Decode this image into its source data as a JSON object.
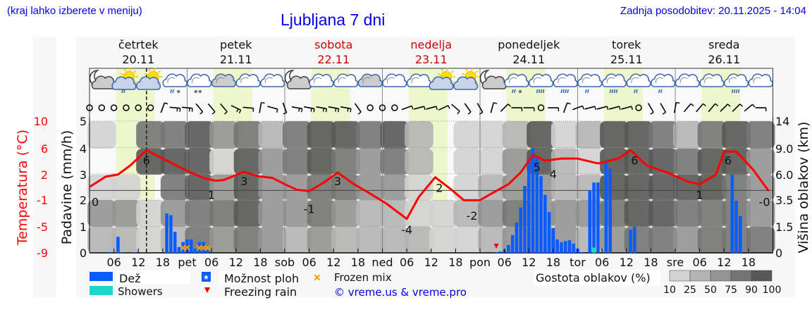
{
  "header": {
    "hint": "(kraj lahko izberete v meniju)",
    "title": "Ljubljana 7 dni",
    "updated": "Zadnja posodobitev: 20.11.2025 - 14:04"
  },
  "colors": {
    "rain": "#0a5cff",
    "showers": "#1ad6c8",
    "temperature": "#ff0000",
    "daylight": "#eef6cc",
    "weekend": "#cc0000",
    "frozen_mix": "#f5a000",
    "freezing_rain": "#ee0000",
    "cloud_density": {
      "10": "#d2d2d2",
      "25": "#b4b4b4",
      "50": "#949494",
      "75": "#747474",
      "90": "#585858"
    }
  },
  "days": [
    {
      "name": "četrtek",
      "date": "20.11",
      "weekend": false
    },
    {
      "name": "petek",
      "date": "21.11",
      "weekend": false
    },
    {
      "name": "sobota",
      "date": "22.11",
      "weekend": true
    },
    {
      "name": "nedelja",
      "date": "23.11",
      "weekend": true
    },
    {
      "name": "ponedeljek",
      "date": "24.11",
      "weekend": false
    },
    {
      "name": "torek",
      "date": "25.11",
      "weekend": false
    },
    {
      "name": "sreda",
      "date": "26.11",
      "weekend": false
    }
  ],
  "now_marker": "20.11 14:00",
  "weather_icons": [
    "moon-cloud",
    "sun-cloud-rain",
    "sun-cloud",
    "cloud-sleet",
    "cloud-snow",
    "cloud",
    "cloud",
    "cloud",
    "moon-cloud",
    "cloud",
    "cloud",
    "cloud",
    "cloud",
    "cloud",
    "sun-cloud",
    "sun-cloud",
    "moon-cloud",
    "cloud-sleet",
    "cloud-rain-heavy",
    "cloud-rain-heavy",
    "cloud-rain-light",
    "cloud-rain-heavy",
    "cloud-rain-light",
    "cloud-rain-light",
    "cloud",
    "cloud",
    "cloud-rain-heavy",
    "cloud"
  ],
  "wind": [
    {
      "dir": 0,
      "kt": 0
    },
    {
      "dir": 0,
      "kt": 0
    },
    {
      "dir": 0,
      "kt": 0
    },
    {
      "dir": 0,
      "kt": 0
    },
    {
      "dir": 0,
      "kt": 0
    },
    {
      "dir": 0,
      "kt": 0
    },
    {
      "dir": 20,
      "kt": 5
    },
    {
      "dir": 95,
      "kt": 10
    },
    {
      "dir": 95,
      "kt": 10
    },
    {
      "dir": 140,
      "kt": 5
    },
    {
      "dir": 140,
      "kt": 5
    },
    {
      "dir": 140,
      "kt": 5
    },
    {
      "dir": 115,
      "kt": 10
    },
    {
      "dir": 95,
      "kt": 5
    },
    {
      "dir": 10,
      "kt": 5
    },
    {
      "dir": 105,
      "kt": 5
    },
    {
      "dir": 160,
      "kt": 5
    },
    {
      "dir": 100,
      "kt": 10
    },
    {
      "dir": 100,
      "kt": 10
    },
    {
      "dir": 100,
      "kt": 10
    },
    {
      "dir": 100,
      "kt": 10
    },
    {
      "dir": 100,
      "kt": 10
    },
    {
      "dir": 145,
      "kt": 5
    },
    {
      "dir": 0,
      "kt": 0
    },
    {
      "dir": 0,
      "kt": 0
    },
    {
      "dir": 0,
      "kt": 0
    },
    {
      "dir": 70,
      "kt": 5
    },
    {
      "dir": 75,
      "kt": 5
    },
    {
      "dir": 75,
      "kt": 5
    },
    {
      "dir": 65,
      "kt": 5
    },
    {
      "dir": 130,
      "kt": 5
    },
    {
      "dir": 145,
      "kt": 5
    },
    {
      "dir": 150,
      "kt": 5
    },
    {
      "dir": 15,
      "kt": 5
    },
    {
      "dir": 45,
      "kt": 5
    },
    {
      "dir": 90,
      "kt": 5
    },
    {
      "dir": 90,
      "kt": 5
    },
    {
      "dir": 0,
      "kt": 0
    },
    {
      "dir": 90,
      "kt": 5
    },
    {
      "dir": 20,
      "kt": 5
    },
    {
      "dir": 70,
      "kt": 5
    },
    {
      "dir": 75,
      "kt": 5
    },
    {
      "dir": 75,
      "kt": 5
    },
    {
      "dir": 75,
      "kt": 5
    },
    {
      "dir": 75,
      "kt": 5
    },
    {
      "dir": 0,
      "kt": 0
    },
    {
      "dir": 150,
      "kt": 5
    },
    {
      "dir": 150,
      "kt": 5
    },
    {
      "dir": 10,
      "kt": 5
    },
    {
      "dir": 40,
      "kt": 5
    },
    {
      "dir": 40,
      "kt": 5
    },
    {
      "dir": 40,
      "kt": 5
    },
    {
      "dir": 45,
      "kt": 5
    },
    {
      "dir": 45,
      "kt": 5
    },
    {
      "dir": 50,
      "kt": 5
    },
    {
      "dir": 90,
      "kt": 5
    }
  ],
  "chart_data": {
    "type": "meteogram",
    "x_tick_labels": [
      "06",
      "12",
      "18",
      "pet",
      "06",
      "12",
      "18",
      "sob",
      "06",
      "12",
      "18",
      "ned",
      "06",
      "12",
      "18",
      "pon",
      "06",
      "12",
      "18",
      "tor",
      "06",
      "12",
      "18",
      "sre",
      "06",
      "12",
      "18"
    ],
    "y_left_outer": {
      "label": "Temperatura (°C)",
      "ticks": [
        "10",
        "6",
        "2",
        "-1",
        "-5",
        "-9"
      ],
      "range": [
        -9,
        10
      ]
    },
    "y_left_inner": {
      "label": "Padavine (mm/h)",
      "ticks": [
        "0",
        "1",
        "2",
        "3",
        "4",
        "5"
      ],
      "range": [
        0,
        5
      ]
    },
    "y_right": {
      "label": "Višina oblakov (km)",
      "ticks": [
        "0",
        "1.5",
        "3.5",
        "6.0",
        "9.0",
        "14"
      ]
    },
    "grid": true,
    "temperature": [
      [
        "20.11 00:00",
        0.5
      ],
      [
        "20.11 04:00",
        2.0
      ],
      [
        "20.11 07:00",
        2.3
      ],
      [
        "20.11 10:00",
        3.6
      ],
      [
        "20.11 14:00",
        5.8
      ],
      [
        "20.11 18:00",
        4.6
      ],
      [
        "20.11 23:00",
        3.1
      ],
      [
        "21.11 04:00",
        1.8
      ],
      [
        "21.11 07:00",
        1.4
      ],
      [
        "21.11 09:00",
        1.5
      ],
      [
        "21.11 14:00",
        2.7
      ],
      [
        "21.11 17:00",
        2.1
      ],
      [
        "21.11 21:00",
        1.8
      ],
      [
        "22.11 00:00",
        0.9
      ],
      [
        "22.11 03:00",
        0.1
      ],
      [
        "22.11 06:00",
        -0.1
      ],
      [
        "22.11 10:00",
        1.3
      ],
      [
        "22.11 13:00",
        2.6
      ],
      [
        "22.11 17:00",
        0.9
      ],
      [
        "22.11 20:00",
        -0.1
      ],
      [
        "23.11 01:00",
        -1.9
      ],
      [
        "23.11 06:00",
        -4.1
      ],
      [
        "23.11 09:00",
        -0.9
      ],
      [
        "23.11 13:00",
        1.9
      ],
      [
        "23.11 17:00",
        0.1
      ],
      [
        "23.11 20:00",
        -1.4
      ],
      [
        "24.11 00:00",
        -1.4
      ],
      [
        "24.11 03:00",
        -0.4
      ],
      [
        "24.11 07:00",
        0.9
      ],
      [
        "24.11 10:00",
        2.6
      ],
      [
        "24.11 13:00",
        5.1
      ],
      [
        "24.11 16:00",
        4.3
      ],
      [
        "24.11 20:00",
        4.6
      ],
      [
        "25.11 00:00",
        4.6
      ],
      [
        "25.11 05:00",
        3.9
      ],
      [
        "25.11 10:00",
        4.6
      ],
      [
        "25.11 13:00",
        5.8
      ],
      [
        "25.11 17:00",
        3.6
      ],
      [
        "25.11 22:00",
        2.6
      ],
      [
        "26.11 03:00",
        1.3
      ],
      [
        "26.11 06:00",
        0.9
      ],
      [
        "26.11 10:00",
        2.3
      ],
      [
        "26.11 12:00",
        5.6
      ],
      [
        "26.11 15:00",
        5.6
      ],
      [
        "26.11 19:00",
        3.1
      ],
      [
        "26.11 23:00",
        -0.1
      ]
    ],
    "temperature_labels": [
      [
        "20.11 00:00",
        "0"
      ],
      [
        "20.11 14:00",
        "6"
      ],
      [
        "21.11 06:00",
        "1"
      ],
      [
        "21.11 14:00",
        "3"
      ],
      [
        "22.11 06:00",
        "-1"
      ],
      [
        "22.11 13:00",
        "3"
      ],
      [
        "23.11 06:00",
        "-4"
      ],
      [
        "23.11 14:00",
        "2"
      ],
      [
        "23.11 22:00",
        "-2"
      ],
      [
        "24.11 14:00",
        "5"
      ],
      [
        "24.11 18:00",
        "4"
      ],
      [
        "25.11 14:00",
        "6"
      ],
      [
        "26.11 06:00",
        "1"
      ],
      [
        "26.11 13:00",
        "6"
      ],
      [
        "26.11 23:00",
        "-0"
      ]
    ],
    "rain": [
      [
        "20.11 05:00",
        0.03
      ],
      [
        "20.11 07:00",
        0.61
      ],
      [
        "20.11 08:00",
        0.02
      ],
      [
        "20.11 11:00",
        0.02
      ],
      [
        "20.11 19:00",
        1.5
      ],
      [
        "20.11 20:00",
        1.43
      ],
      [
        "20.11 21:00",
        0.8
      ],
      [
        "20.11 22:00",
        0.22
      ],
      [
        "20.11 23:00",
        0.41
      ],
      [
        "21.11 00:00",
        0.51
      ],
      [
        "21.11 01:00",
        0.51
      ],
      [
        "21.11 02:00",
        0.16
      ],
      [
        "21.11 03:00",
        0.41
      ],
      [
        "21.11 04:00",
        0.41
      ],
      [
        "21.11 05:00",
        0.1
      ],
      [
        "24.11 04:00",
        0.02
      ],
      [
        "24.11 05:00",
        0.05
      ],
      [
        "24.11 06:00",
        0.13
      ],
      [
        "24.11 07:00",
        0.3
      ],
      [
        "24.11 08:00",
        0.67
      ],
      [
        "24.11 09:00",
        1.15
      ],
      [
        "24.11 10:00",
        1.72
      ],
      [
        "24.11 11:00",
        2.54
      ],
      [
        "24.11 12:00",
        3.53
      ],
      [
        "24.11 13:00",
        3.98
      ],
      [
        "24.11 14:00",
        3.66
      ],
      [
        "24.11 15:00",
        2.91
      ],
      [
        "24.11 16:00",
        2.2
      ],
      [
        "24.11 17:00",
        1.55
      ],
      [
        "24.11 18:00",
        0.94
      ],
      [
        "24.11 19:00",
        0.51
      ],
      [
        "24.11 20:00",
        0.4
      ],
      [
        "24.11 21:00",
        0.45
      ],
      [
        "24.11 22:00",
        0.48
      ],
      [
        "24.11 23:00",
        0.35
      ],
      [
        "25.11 00:00",
        0.16
      ],
      [
        "25.11 01:00",
        0.02
      ],
      [
        "25.11 03:00",
        2.38
      ],
      [
        "25.11 04:00",
        2.67
      ],
      [
        "25.11 05:00",
        2.67
      ],
      [
        "25.11 07:00",
        3.48
      ],
      [
        "25.11 08:00",
        3.2
      ],
      [
        "25.11 13:00",
        0.88
      ],
      [
        "25.11 14:00",
        0.99
      ],
      [
        "26.11 14:00",
        2.97
      ],
      [
        "26.11 15:00",
        1.98
      ],
      [
        "26.11 16:00",
        1.4
      ]
    ],
    "showers": [
      [
        "25.11 04:00",
        0.2
      ]
    ],
    "frozen_mix": [
      "20.11 23:00",
      "21.11 00:00",
      "21.11 03:00",
      "21.11 04:00",
      "21.11 05:00"
    ],
    "freezing_rain": [
      "24.11 04:00"
    ],
    "cloud_density_bands_km": [
      "0-1.5",
      "1.5-3.5",
      "3.5-6.0",
      "6.0-9.0",
      "9.0-14"
    ],
    "cloud_density_6h": [
      [
        25,
        50,
        10,
        0,
        10
      ],
      [
        25,
        50,
        10,
        0,
        0
      ],
      [
        10,
        10,
        0,
        90,
        75
      ],
      [
        25,
        50,
        75,
        90,
        75
      ],
      [
        75,
        75,
        90,
        90,
        90
      ],
      [
        50,
        75,
        50,
        10,
        50
      ],
      [
        75,
        90,
        90,
        90,
        75
      ],
      [
        50,
        50,
        50,
        50,
        25
      ],
      [
        25,
        50,
        50,
        75,
        75
      ],
      [
        50,
        75,
        75,
        90,
        90
      ],
      [
        25,
        50,
        75,
        75,
        90
      ],
      [
        25,
        25,
        50,
        50,
        75
      ],
      [
        25,
        25,
        50,
        75,
        90
      ],
      [
        25,
        10,
        10,
        25,
        25
      ],
      [
        10,
        10,
        0,
        0,
        0
      ],
      [
        10,
        25,
        10,
        10,
        10
      ],
      [
        25,
        50,
        25,
        10,
        10
      ],
      [
        50,
        75,
        50,
        50,
        25
      ],
      [
        50,
        50,
        50,
        90,
        90
      ],
      [
        50,
        50,
        25,
        25,
        10
      ],
      [
        25,
        50,
        25,
        10,
        25
      ],
      [
        50,
        75,
        90,
        90,
        90
      ],
      [
        75,
        90,
        90,
        90,
        90
      ],
      [
        75,
        90,
        90,
        90,
        75
      ],
      [
        50,
        75,
        90,
        75,
        25
      ],
      [
        75,
        75,
        90,
        90,
        75
      ],
      [
        75,
        75,
        75,
        90,
        90
      ],
      [
        75,
        50,
        50,
        50,
        75
      ]
    ]
  },
  "legend": {
    "rain": "Dež",
    "showers": "Showers",
    "possible_showers": "Možnost ploh",
    "frozen_mix": "Frozen mix",
    "freezing_rain": "Freezing rain",
    "credit": "© vreme.us & vreme.pro",
    "cloud_density": "Gostota oblakov (%)",
    "cloud_levels": [
      "10",
      "25",
      "50",
      "75",
      "90",
      "100"
    ]
  }
}
